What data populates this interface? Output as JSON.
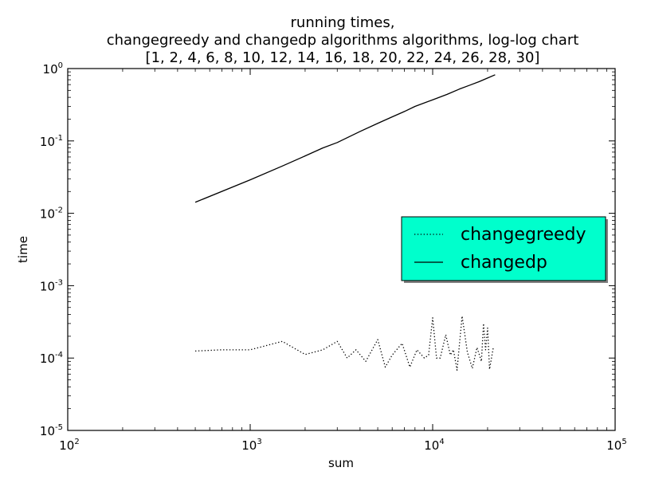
{
  "chart_data": {
    "type": "line",
    "title": [
      "running times,",
      "changegreedy and changedp algorithms algorithms, log-log chart",
      "[1, 2, 4, 6, 8, 10, 12, 14, 16, 18, 20, 22, 24, 26, 28, 30]"
    ],
    "xlabel": "sum",
    "ylabel": "time",
    "xscale": "log",
    "yscale": "log",
    "xlim": [
      100,
      100000
    ],
    "ylim": [
      1e-05,
      1
    ],
    "grid": false,
    "legend_placement": "center-right",
    "legend_background": "#00ffcc",
    "x_ticks": [
      {
        "value": 100,
        "base": "10",
        "exp": "2"
      },
      {
        "value": 1000,
        "base": "10",
        "exp": "3"
      },
      {
        "value": 10000,
        "base": "10",
        "exp": "4"
      },
      {
        "value": 100000,
        "base": "10",
        "exp": "5"
      }
    ],
    "y_ticks": [
      {
        "value": 1,
        "base": "10",
        "exp": "0"
      },
      {
        "value": 0.1,
        "base": "10",
        "exp": "-1"
      },
      {
        "value": 0.01,
        "base": "10",
        "exp": "-2"
      },
      {
        "value": 0.001,
        "base": "10",
        "exp": "-3"
      },
      {
        "value": 0.0001,
        "base": "10",
        "exp": "-4"
      },
      {
        "value": 1e-05,
        "base": "10",
        "exp": "-5"
      }
    ],
    "series": [
      {
        "name": "changegreedy",
        "style": "dotted",
        "color": "#000000",
        "x": [
          500,
          700,
          1000,
          1500,
          2000,
          2500,
          3000,
          3400,
          3800,
          4300,
          5000,
          5500,
          6000,
          6800,
          7500,
          8200,
          9000,
          9500,
          10000,
          10500,
          11000,
          11800,
          12500,
          13000,
          13600,
          14500,
          15500,
          16500,
          17500,
          18500,
          19000,
          19500,
          20000,
          20500,
          21500
        ],
        "y": [
          0.000125,
          0.00013,
          0.00013,
          0.00017,
          0.000112,
          0.00013,
          0.00017,
          0.0001,
          0.00013,
          9e-05,
          0.00018,
          7.5e-05,
          0.00011,
          0.00016,
          7.5e-05,
          0.00013,
          0.0001,
          0.00011,
          0.00036,
          0.0001,
          0.0001,
          0.00021,
          0.00011,
          0.00013,
          6.8e-05,
          0.00038,
          0.00012,
          7.2e-05,
          0.00014,
          9e-05,
          0.0003,
          0.00013,
          0.00026,
          7e-05,
          0.00014
        ]
      },
      {
        "name": "changedp",
        "style": "solid",
        "color": "#000000",
        "x": [
          500,
          1000,
          1500,
          2000,
          2500,
          3000,
          4000,
          5000,
          6000,
          7000,
          8000,
          10000,
          12000,
          14000,
          16000,
          18000,
          20000,
          22000
        ],
        "y": [
          0.0142,
          0.029,
          0.045,
          0.062,
          0.08,
          0.095,
          0.135,
          0.175,
          0.215,
          0.255,
          0.3,
          0.37,
          0.44,
          0.52,
          0.59,
          0.66,
          0.74,
          0.82
        ]
      }
    ]
  }
}
